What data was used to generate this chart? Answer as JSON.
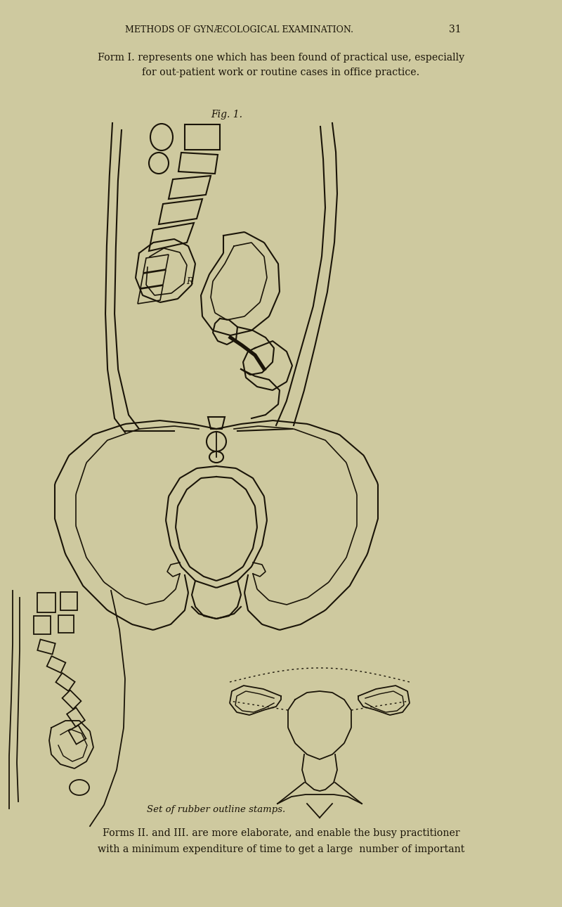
{
  "background_color": "#cec99f",
  "header_text": "METHODS OF GYNÆCOLOGICAL EXAMINATION.",
  "page_number": "31",
  "para1_line1": "Form I. represents one which has been found of practical use, especially",
  "para1_line2": "for out-patient work or routine cases in office practice.",
  "fig_label": "Fig. 1.",
  "caption": "Set of rubber outline stamps.",
  "para2_line1": "Forms II. and III. are more elaborate, and enable the busy practitioner",
  "para2_line2": "with a minimum expenditure of time to get a large  number of important",
  "line_color": "#1a1408",
  "text_color": "#1a1408",
  "figsize": [
    8.0,
    12.9
  ],
  "dpi": 100
}
